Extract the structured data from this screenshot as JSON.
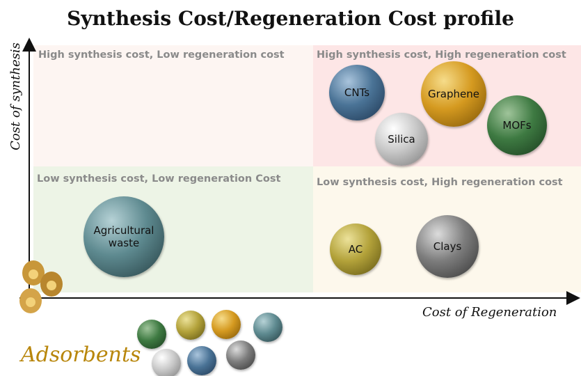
{
  "title": "Synthesis Cost/Regeneration Cost profile",
  "axes": {
    "x_label": "Cost of Regeneration",
    "y_label": "Cost of synthesis"
  },
  "quadrants": [
    {
      "label": "High synthesis cost, Low regeneration cost"
    },
    {
      "label": "High synthesis cost, High regeneration cost"
    },
    {
      "label": "Low synthesis cost, Low regeneration Cost"
    },
    {
      "label": "Low synthesis cost, High regeneration cost"
    }
  ],
  "nodes": [
    {
      "label": "CNTs"
    },
    {
      "label": "Graphene"
    },
    {
      "label": "Silica"
    },
    {
      "label": "MOFs"
    },
    {
      "label": "Agricultural waste"
    },
    {
      "label": "AC"
    },
    {
      "label": "Clays"
    }
  ],
  "legend": {
    "label": "Adsorbents"
  }
}
